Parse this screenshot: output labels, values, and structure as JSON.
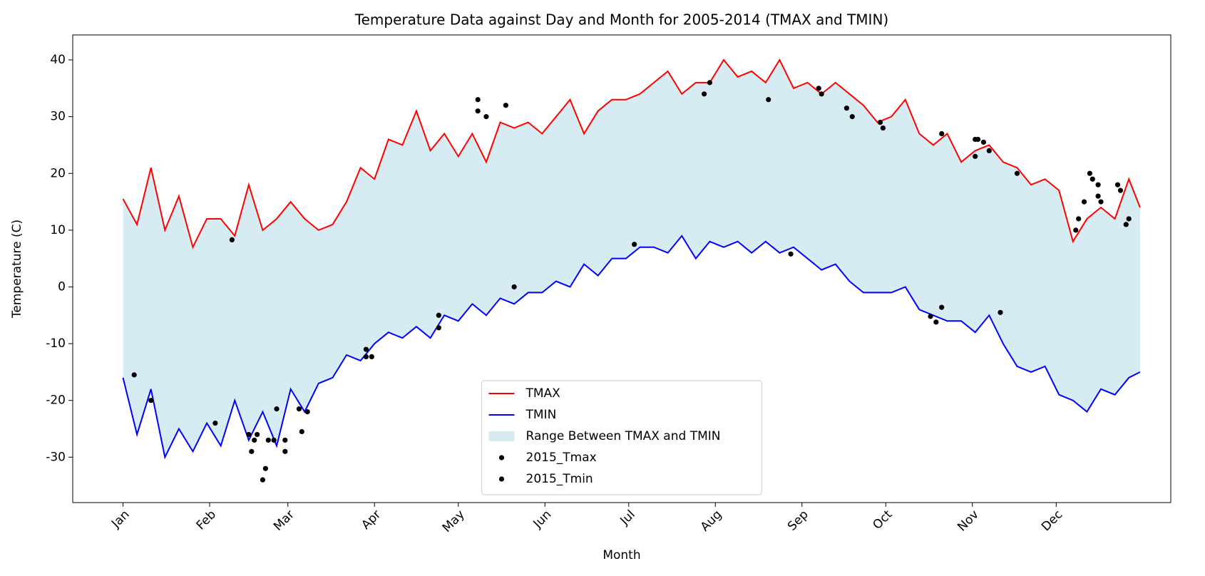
{
  "chart_data": {
    "type": "line",
    "title": "Temperature Data against Day and Month for 2005-2014 (TMAX and TMIN)",
    "xlabel": "Month",
    "ylabel": "Temperature (C)",
    "x": [
      1,
      6,
      11,
      16,
      21,
      26,
      31,
      36,
      41,
      46,
      51,
      56,
      61,
      66,
      71,
      76,
      81,
      86,
      91,
      96,
      101,
      106,
      111,
      116,
      121,
      126,
      131,
      136,
      141,
      146,
      151,
      156,
      161,
      166,
      171,
      176,
      181,
      186,
      191,
      196,
      201,
      206,
      211,
      216,
      221,
      226,
      231,
      236,
      241,
      246,
      251,
      256,
      261,
      266,
      271,
      276,
      281,
      286,
      291,
      296,
      301,
      306,
      311,
      316,
      321,
      326,
      331,
      336,
      341,
      346,
      351,
      356,
      361,
      365
    ],
    "series": [
      {
        "name": "TMAX",
        "color": "red",
        "values": [
          15.5,
          11,
          21,
          10,
          16,
          7,
          12,
          12,
          9,
          18,
          10,
          12,
          15,
          12,
          10,
          11,
          15,
          21,
          19,
          26,
          25,
          31,
          24,
          27,
          23,
          27,
          22,
          29,
          28,
          29,
          27,
          30,
          33,
          27,
          31,
          33,
          33,
          34,
          36,
          38,
          34,
          36,
          36,
          40,
          37,
          38,
          36,
          40,
          35,
          36,
          34,
          36,
          34,
          32,
          29,
          30,
          33,
          27,
          25,
          27,
          22,
          24,
          25,
          22,
          21,
          18,
          19,
          17,
          8,
          12,
          14,
          12,
          19,
          14
        ]
      },
      {
        "name": "TMIN",
        "color": "blue",
        "values": [
          -16,
          -26,
          -18,
          -30,
          -25,
          -29,
          -24,
          -28,
          -20,
          -27,
          -22,
          -28,
          -18,
          -22,
          -17,
          -16,
          -12,
          -13,
          -10,
          -8,
          -9,
          -7,
          -9,
          -5,
          -6,
          -3,
          -5,
          -2,
          -3,
          -1,
          -1,
          1,
          0,
          4,
          2,
          5,
          5,
          7,
          7,
          6,
          9,
          5,
          8,
          7,
          8,
          6,
          8,
          6,
          7,
          5,
          3,
          4,
          1,
          -1,
          -1,
          -1,
          0,
          -4,
          -5,
          -6,
          -6,
          -8,
          -5,
          -10,
          -14,
          -15,
          -14,
          -19,
          -20,
          -22,
          -18,
          -19,
          -16,
          -15
        ]
      }
    ],
    "fill": {
      "name": "Range Between TMAX and TMIN",
      "color": "lightblue"
    },
    "scatter": [
      {
        "name": "2015_Tmax",
        "color": "black",
        "x": [
          40,
          128,
          128,
          131,
          138,
          209,
          211,
          232,
          250,
          251,
          260,
          262,
          272,
          273,
          294,
          306,
          307,
          309,
          311,
          306,
          321,
          342,
          343,
          345,
          347,
          348,
          350,
          350,
          351,
          357,
          358,
          360,
          361
        ],
        "values": [
          8.3,
          33,
          31,
          30,
          32,
          34,
          36,
          33,
          35,
          34,
          31.5,
          30,
          29,
          28,
          27,
          26,
          26,
          25.5,
          24,
          23,
          20,
          10,
          12,
          15,
          20,
          19,
          18,
          16,
          15,
          18,
          17,
          11,
          12
        ]
      },
      {
        "name": "2015_Tmin",
        "color": "black",
        "x": [
          5,
          11,
          34,
          46,
          47,
          48,
          49,
          51,
          52,
          53,
          55,
          56,
          59,
          59,
          64,
          65,
          67,
          88,
          88,
          90,
          114,
          114,
          141,
          184,
          240,
          290,
          292,
          294,
          315
        ],
        "values": [
          -15.5,
          -20,
          -24,
          -26,
          -29,
          -27,
          -26,
          -34,
          -32,
          -27,
          -27,
          -21.5,
          -29,
          -27,
          -21.5,
          -25.5,
          -22,
          -11,
          -12.3,
          -12.3,
          -7.2,
          -5,
          0,
          7.5,
          5.8,
          -5.2,
          -6.2,
          -3.6,
          -4.5
        ]
      }
    ],
    "xlim": [
      -17,
      376
    ],
    "xticks": [
      {
        "value": 1,
        "label": "Jan"
      },
      {
        "value": 32,
        "label": "Feb"
      },
      {
        "value": 60,
        "label": "Mar"
      },
      {
        "value": 91,
        "label": "Apr"
      },
      {
        "value": 121,
        "label": "May"
      },
      {
        "value": 152,
        "label": "Jun"
      },
      {
        "value": 182,
        "label": "Jul"
      },
      {
        "value": 213,
        "label": "Aug"
      },
      {
        "value": 244,
        "label": "Sep"
      },
      {
        "value": 274,
        "label": "Oct"
      },
      {
        "value": 305,
        "label": "Nov"
      },
      {
        "value": 335,
        "label": "Dec"
      }
    ],
    "ylim": [
      -38,
      44.4
    ],
    "yticks": [
      -30,
      -20,
      -10,
      0,
      10,
      20,
      30,
      40
    ],
    "legend": "lower center"
  }
}
